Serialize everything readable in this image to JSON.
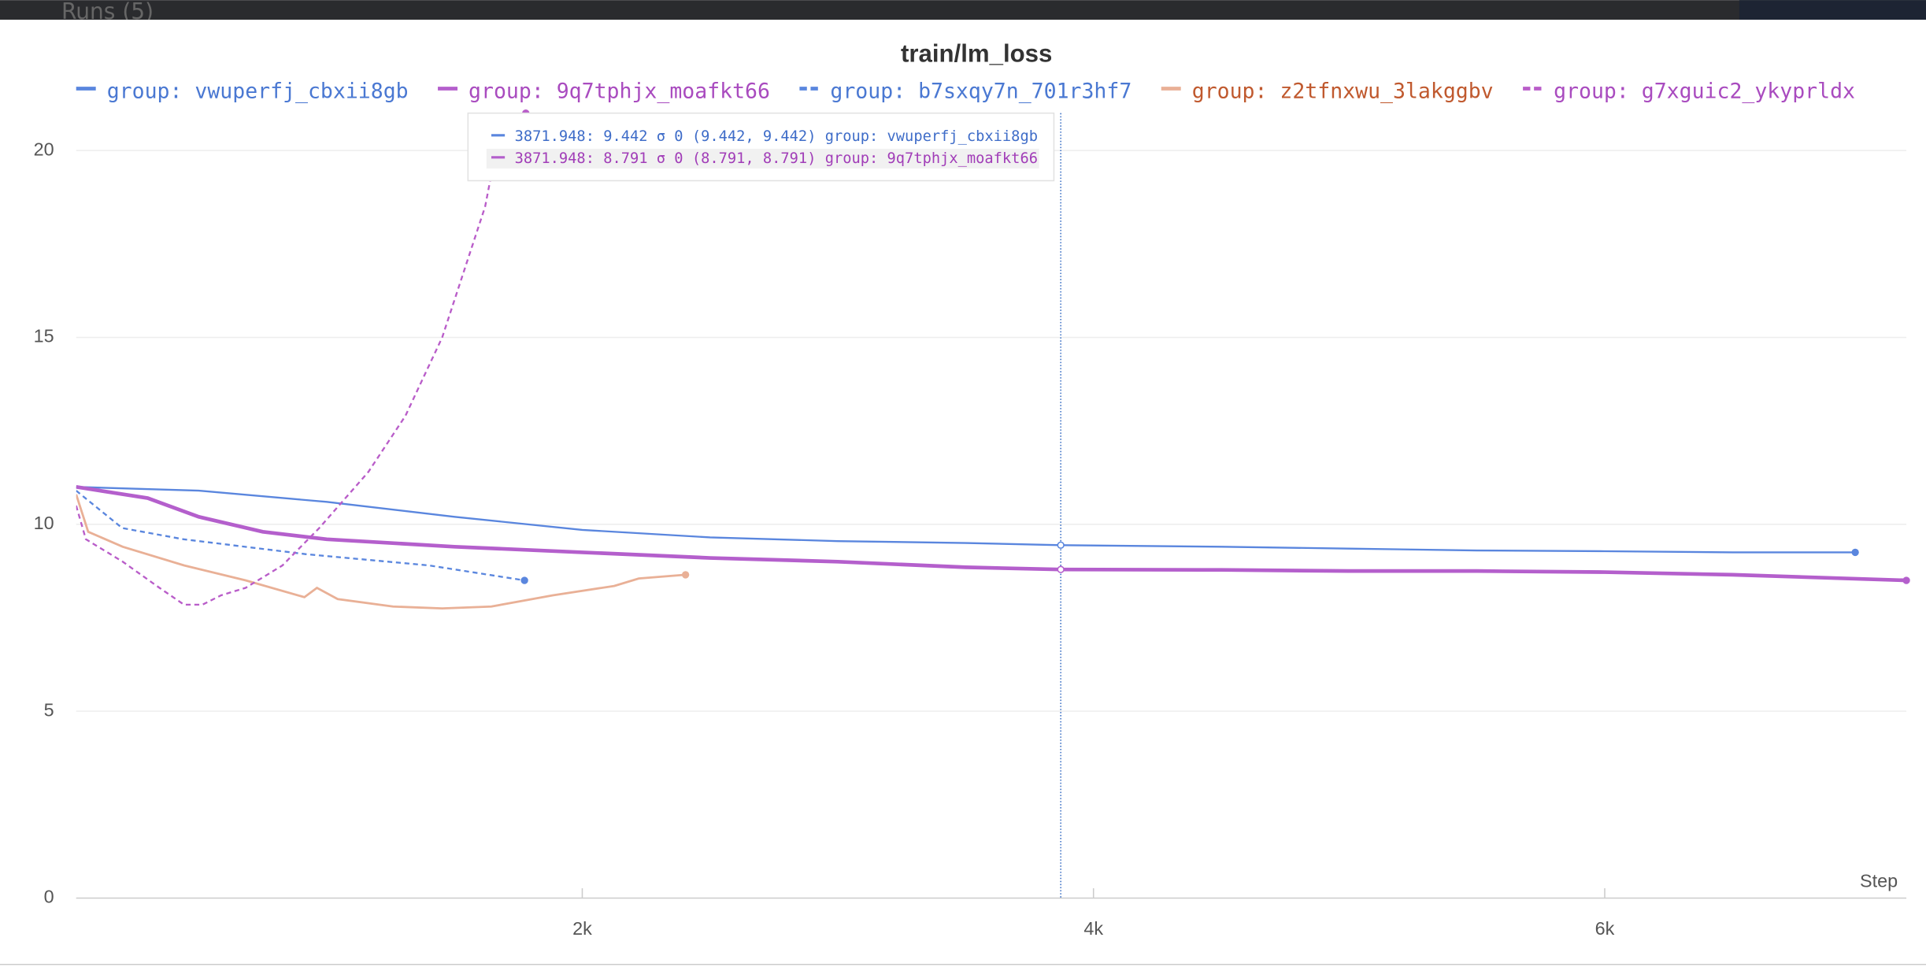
{
  "ui": {
    "runs_label": "Runs (5)"
  },
  "chart_data": {
    "type": "line",
    "title": "train/lm_loss",
    "x_label": "Step",
    "xlim": [
      20,
      7180
    ],
    "ylim": [
      0,
      21
    ],
    "xticks": [
      {
        "value": 2000,
        "label": "2k"
      },
      {
        "value": 4000,
        "label": "4k"
      },
      {
        "value": 6000,
        "label": "6k"
      }
    ],
    "yticks": [
      0,
      5,
      10,
      15,
      20
    ],
    "grid": true,
    "series": [
      {
        "name": "group: vwuperfj_cbxii8gb",
        "color": "#5a86de",
        "dashed": false,
        "width": 1.5,
        "x": [
          20,
          500,
          1000,
          1500,
          2000,
          2500,
          3000,
          3500,
          3872,
          4500,
          5000,
          5500,
          6000,
          6500,
          6980
        ],
        "values": [
          11.0,
          10.9,
          10.6,
          10.2,
          9.85,
          9.65,
          9.55,
          9.5,
          9.442,
          9.4,
          9.35,
          9.3,
          9.28,
          9.25,
          9.25
        ]
      },
      {
        "name": "group: 9q7tphjx_moafkt66",
        "color": "#b45fcc",
        "dashed": false,
        "width": 3,
        "x": [
          20,
          300,
          500,
          750,
          1000,
          1500,
          2000,
          2500,
          3000,
          3500,
          3872,
          4500,
          5000,
          5500,
          6000,
          6500,
          7180
        ],
        "values": [
          11.0,
          10.7,
          10.2,
          9.8,
          9.6,
          9.4,
          9.25,
          9.1,
          9.0,
          8.85,
          8.791,
          8.78,
          8.75,
          8.75,
          8.72,
          8.65,
          8.5
        ]
      },
      {
        "name": "group: b7sxqy7n_701r3hf7",
        "color": "#5a86de",
        "dashed": true,
        "width": 1.5,
        "x": [
          20,
          200,
          440,
          920,
          1400,
          1774
        ],
        "values": [
          10.9,
          9.9,
          9.6,
          9.2,
          8.9,
          8.5
        ]
      },
      {
        "name": "group: z2tfnxwu_3lakggbv",
        "color": "#e9b096",
        "dashed": false,
        "width": 1.8,
        "x": [
          20,
          67,
          202,
          442,
          683,
          913,
          962,
          1043,
          1260,
          1452,
          1644,
          1885,
          2125,
          2221,
          2404
        ],
        "values": [
          10.8,
          9.8,
          9.4,
          8.9,
          8.5,
          8.05,
          8.3,
          8.0,
          7.8,
          7.75,
          7.8,
          8.1,
          8.35,
          8.55,
          8.65
        ]
      },
      {
        "name": "group: g7xguic2_ykyprldx",
        "color": "#b95dc9",
        "dashed": true,
        "width": 1.5,
        "x": [
          20,
          58,
          202,
          346,
          442,
          514,
          587,
          683,
          827,
          971,
          1163,
          1308,
          1452,
          1548,
          1620,
          1668,
          1779
        ],
        "values": [
          10.5,
          9.6,
          9.0,
          8.3,
          7.85,
          7.85,
          8.1,
          8.3,
          8.9,
          9.9,
          11.4,
          12.9,
          15.0,
          17.0,
          18.5,
          20.2,
          21.0
        ]
      }
    ],
    "tooltip": {
      "x": 3871.948,
      "rows": [
        {
          "label": "3871.948: 9.442 σ 0 (9.442, 9.442) group: vwuperfj_cbxii8gb",
          "value": 9.442
        },
        {
          "label": "3871.948: 8.791 σ 0 (8.791, 8.791) group: 9q7tphjx_moafkt66",
          "value": 8.791
        }
      ]
    }
  }
}
